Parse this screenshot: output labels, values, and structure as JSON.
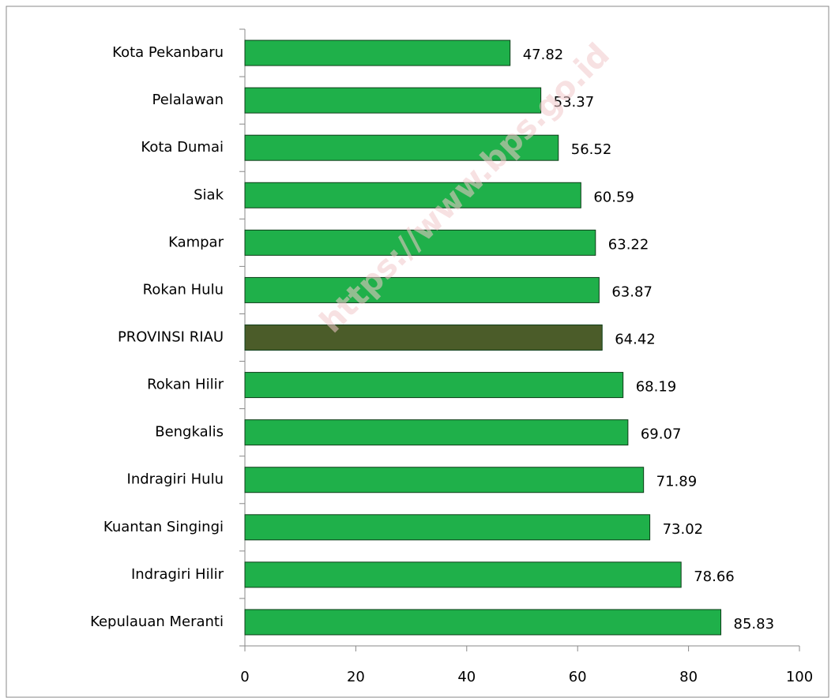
{
  "chart_data": {
    "type": "barh",
    "categories": [
      "Kota Pekanbaru",
      "Pelalawan",
      "Kota Dumai",
      "Siak",
      "Kampar",
      "Rokan Hulu",
      "PROVINSI RIAU",
      "Rokan Hilir",
      "Bengkalis",
      "Indragiri Hulu",
      "Kuantan Singingi",
      "Indragiri Hilir",
      "Kepulauan Meranti"
    ],
    "values": [
      47.82,
      53.37,
      56.52,
      60.59,
      63.22,
      63.87,
      64.42,
      68.19,
      69.07,
      71.89,
      73.02,
      78.66,
      85.83
    ],
    "colors": [
      "#1fb04a",
      "#1fb04a",
      "#1fb04a",
      "#1fb04a",
      "#1fb04a",
      "#1fb04a",
      "#4b5c29",
      "#1fb04a",
      "#1fb04a",
      "#1fb04a",
      "#1fb04a",
      "#1fb04a",
      "#1fb04a"
    ],
    "xlim": [
      0,
      100
    ],
    "xticks": [
      0,
      20,
      40,
      60,
      80,
      100
    ],
    "watermark": "https://www.bps.go.id"
  }
}
